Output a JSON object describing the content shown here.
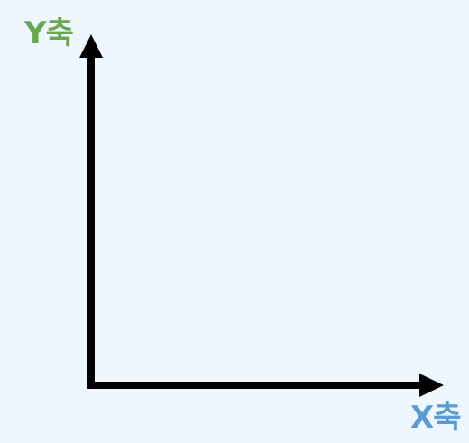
{
  "diagram": {
    "y_axis_label": "Y축",
    "x_axis_label": "X축",
    "colors": {
      "background": "#eef7ff",
      "axis": "#000000",
      "y_label": "#6aa84f",
      "x_label": "#5b9bd5"
    }
  }
}
